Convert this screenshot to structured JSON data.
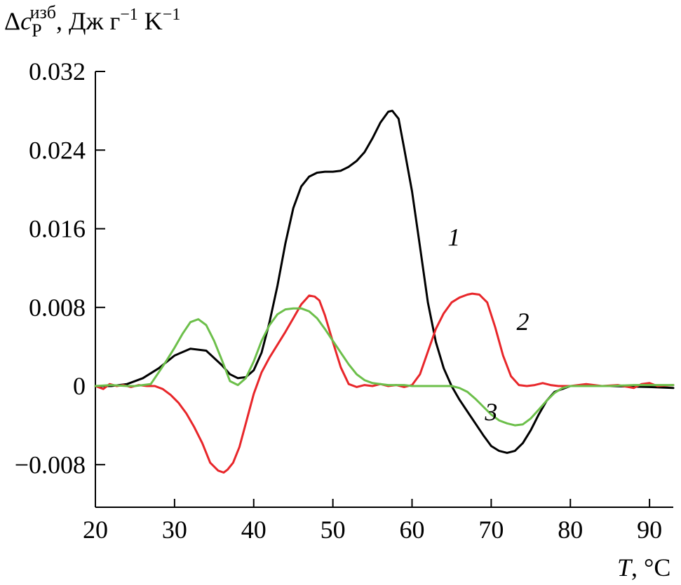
{
  "chart_data": {
    "type": "line",
    "title": "",
    "ylabel": {
      "delta": "Δ",
      "c": "c",
      "sub": "P",
      "sup": "изб",
      "units_pre": ", Дж г",
      "exp1": "−1",
      "units_mid": " K",
      "exp2": "−1"
    },
    "xlabel": {
      "var": "T",
      "unit": ", °C"
    },
    "xlim": [
      20,
      93
    ],
    "ylim": [
      -0.0125,
      0.032
    ],
    "xticks": [
      20,
      30,
      40,
      50,
      60,
      70,
      80,
      90
    ],
    "xtick_labels": [
      "20",
      "30",
      "40",
      "50",
      "60",
      "70",
      "80",
      "90"
    ],
    "yticks": [
      -0.008,
      0,
      0.008,
      0.016,
      0.024,
      0.032
    ],
    "ytick_labels": [
      "−0.008",
      "0",
      "0.008",
      "0.016",
      "0.024",
      "0.032"
    ],
    "grid": false,
    "series": [
      {
        "name": "1",
        "color": "#000000",
        "label_at": [
          64.5,
          0.0143
        ],
        "x": [
          20,
          22,
          24,
          26,
          28,
          30,
          32,
          34,
          36,
          37,
          38,
          39,
          40,
          41,
          42,
          43,
          44,
          45,
          46,
          47,
          48,
          49,
          50,
          51,
          52,
          53,
          54,
          55,
          56,
          57,
          57.5,
          58.3,
          59,
          60,
          61,
          62,
          63,
          64,
          65,
          66,
          67,
          68,
          69,
          70,
          71,
          72,
          73,
          74,
          75,
          76,
          77,
          78,
          80,
          85,
          90,
          93
        ],
        "y": [
          0,
          0,
          0.0002,
          0.0008,
          0.0018,
          0.0031,
          0.0038,
          0.0036,
          0.0021,
          0.0012,
          0.0008,
          0.0009,
          0.0016,
          0.0034,
          0.0065,
          0.0102,
          0.0145,
          0.0181,
          0.0203,
          0.0213,
          0.0217,
          0.0218,
          0.0218,
          0.0219,
          0.0223,
          0.0229,
          0.0238,
          0.0252,
          0.0268,
          0.0279,
          0.028,
          0.0272,
          0.0242,
          0.0198,
          0.0142,
          0.0085,
          0.0045,
          0.0018,
          0.0,
          -0.0014,
          -0.0026,
          -0.0038,
          -0.005,
          -0.0061,
          -0.0066,
          -0.0068,
          -0.0066,
          -0.0058,
          -0.0045,
          -0.0029,
          -0.0015,
          -0.0006,
          0.0,
          0.0,
          -0.0001,
          -0.0002
        ]
      },
      {
        "name": "2",
        "color": "#e8262a",
        "label_at": [
          73.2,
          0.0057
        ],
        "x": [
          20,
          21,
          21.8,
          22.7,
          23.5,
          24.5,
          25.5,
          26.5,
          27.5,
          28.5,
          29.5,
          30.5,
          31.5,
          32.5,
          33.5,
          34.5,
          35.5,
          36.2,
          36.7,
          37.4,
          38.2,
          39,
          40,
          41,
          42,
          43,
          44,
          45,
          46,
          47,
          47.7,
          48.3,
          49,
          50,
          51,
          52,
          53,
          54,
          55,
          56,
          57,
          58,
          59,
          60,
          61,
          62,
          63,
          64,
          65,
          66,
          67,
          67.6,
          68.5,
          69.5,
          70.5,
          71.5,
          72.5,
          73.5,
          74.5,
          75.5,
          76.5,
          77.5,
          78.5,
          80,
          82,
          84,
          86,
          88,
          89,
          90,
          91,
          93
        ],
        "y": [
          0,
          -0.0003,
          0.0002,
          0,
          0.0001,
          -0.0001,
          0.0001,
          0,
          0,
          -0.0003,
          -0.0009,
          -0.0017,
          -0.0028,
          -0.0042,
          -0.0058,
          -0.0078,
          -0.0086,
          -0.0088,
          -0.0085,
          -0.0078,
          -0.0062,
          -0.0038,
          -0.0008,
          0.0014,
          0.0029,
          0.0042,
          0.0055,
          0.0069,
          0.0083,
          0.0092,
          0.0091,
          0.0087,
          0.0072,
          0.0045,
          0.0019,
          0.0002,
          -0.0001,
          0.0001,
          0,
          0.0002,
          0,
          0.0001,
          -0.0001,
          0.0001,
          0.0012,
          0.0035,
          0.0058,
          0.0074,
          0.0085,
          0.009,
          0.0093,
          0.0094,
          0.0093,
          0.0085,
          0.006,
          0.0031,
          0.001,
          0.0001,
          0,
          0.0001,
          0.0003,
          0.0001,
          0,
          0,
          0.0002,
          0,
          0.0001,
          -0.0002,
          0.0002,
          0.0003,
          0,
          0.0001
        ]
      },
      {
        "name": "3",
        "color": "#6cbf4a",
        "label_at": [
          69.2,
          -0.0035
        ],
        "x": [
          20,
          22,
          24,
          25,
          26,
          27,
          28,
          29,
          30,
          31,
          32,
          33,
          34,
          35,
          36,
          37,
          38,
          39,
          40,
          41,
          42,
          43,
          44,
          45,
          46,
          47,
          48,
          49,
          50,
          51,
          52,
          53,
          54,
          55,
          56,
          57,
          58,
          59,
          60,
          62,
          64,
          65,
          66,
          67,
          68,
          69,
          70,
          71,
          72,
          73,
          74,
          75,
          76,
          77,
          78,
          79,
          80,
          82,
          85,
          88,
          90,
          93
        ],
        "y": [
          0,
          0.0001,
          0,
          0,
          0.0001,
          0.0002,
          0.0014,
          0.0026,
          0.0039,
          0.0053,
          0.0065,
          0.0068,
          0.0062,
          0.0046,
          0.0026,
          0.0005,
          0.0001,
          0.0008,
          0.0025,
          0.0046,
          0.0062,
          0.0073,
          0.0078,
          0.0079,
          0.0079,
          0.0076,
          0.0069,
          0.0058,
          0.0046,
          0.0034,
          0.0022,
          0.0012,
          0.0006,
          0.0003,
          0.0002,
          0.0001,
          0.0001,
          0.0001,
          0,
          0,
          0,
          0,
          -0.0002,
          -0.0006,
          -0.0013,
          -0.0021,
          -0.0029,
          -0.0035,
          -0.0038,
          -0.004,
          -0.0039,
          -0.0033,
          -0.0024,
          -0.0015,
          -0.0007,
          -0.0002,
          0,
          0,
          0,
          0.0001,
          0.0001,
          0.0001
        ]
      }
    ]
  }
}
